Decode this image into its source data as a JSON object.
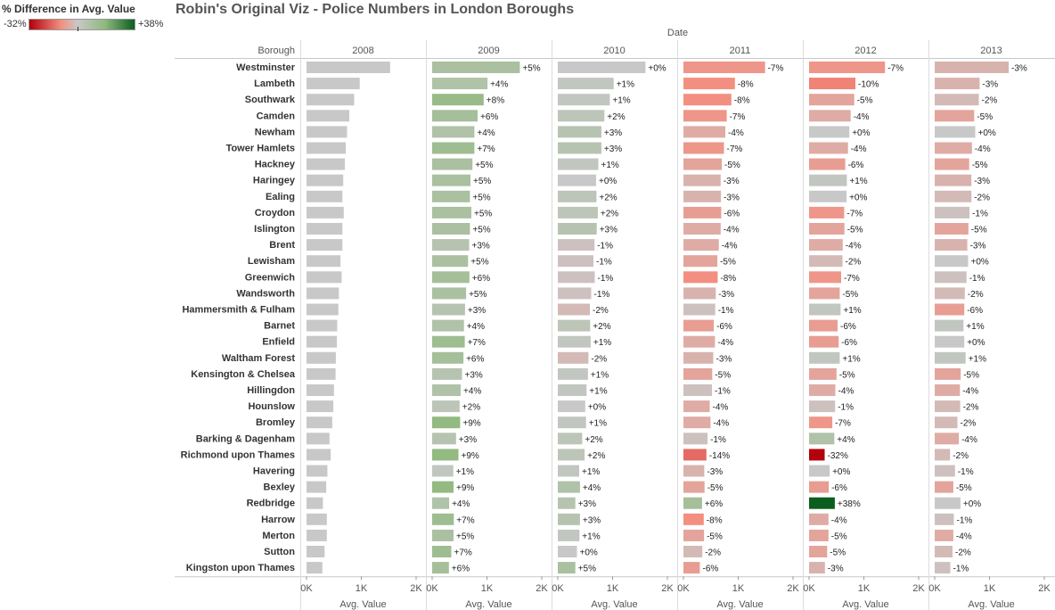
{
  "chart_data": {
    "type": "bar",
    "title": "Robin's Original Viz - Police Numbers in London Boroughs",
    "column_header": "Date",
    "row_header": "Borough",
    "xlabel": "Avg. Value",
    "xlim": [
      0,
      2000
    ],
    "x_ticks": [
      "0K",
      "1K",
      "2K"
    ],
    "legend": {
      "title": "% Difference in Avg. Value",
      "min_label": "-32%",
      "max_label": "+38%",
      "min": -32,
      "max": 38,
      "colors": [
        "#b2000c",
        "#f38f80",
        "#c8c8c8",
        "#8fb97d",
        "#0c5e1e"
      ],
      "placement": "top-left"
    },
    "years": [
      "2008",
      "2009",
      "2010",
      "2011",
      "2012",
      "2013"
    ],
    "boroughs": [
      "Westminster",
      "Lambeth",
      "Southwark",
      "Camden",
      "Newham",
      "Tower Hamlets",
      "Hackney",
      "Haringey",
      "Ealing",
      "Croydon",
      "Islington",
      "Brent",
      "Lewisham",
      "Greenwich",
      "Wandsworth",
      "Hammersmith & Fulham",
      "Barnet",
      "Enfield",
      "Waltham Forest",
      "Kensington & Chelsea",
      "Hillingdon",
      "Hounslow",
      "Bromley",
      "Barking & Dagenham",
      "Richmond upon Thames",
      "Havering",
      "Bexley",
      "Redbridge",
      "Harrow",
      "Merton",
      "Sutton",
      "Kingston upon Thames"
    ],
    "series": [
      {
        "values": [
          1525,
          970,
          870,
          780,
          740,
          715,
          700,
          670,
          655,
          680,
          655,
          655,
          620,
          640,
          590,
          580,
          560,
          555,
          535,
          530,
          500,
          490,
          470,
          420,
          440,
          380,
          360,
          300,
          370,
          370,
          330,
          290
        ],
        "pct": [
          null,
          null,
          null,
          null,
          null,
          null,
          null,
          null,
          null,
          null,
          null,
          null,
          null,
          null,
          null,
          null,
          null,
          null,
          null,
          null,
          null,
          null,
          null,
          null,
          null,
          null,
          null,
          null,
          null,
          null,
          null,
          null
        ]
      },
      {
        "values": [
          1600,
          1010,
          940,
          830,
          770,
          770,
          735,
          700,
          690,
          715,
          690,
          675,
          655,
          680,
          620,
          600,
          580,
          595,
          570,
          545,
          520,
          500,
          510,
          435,
          480,
          385,
          390,
          310,
          395,
          390,
          350,
          305
        ],
        "pct": [
          "+5%",
          "+4%",
          "+8%",
          "+6%",
          "+4%",
          "+7%",
          "+5%",
          "+5%",
          "+5%",
          "+5%",
          "+5%",
          "+3%",
          "+5%",
          "+6%",
          "+5%",
          "+3%",
          "+4%",
          "+7%",
          "+6%",
          "+3%",
          "+4%",
          "+2%",
          "+9%",
          "+3%",
          "+9%",
          "+1%",
          "+9%",
          "+4%",
          "+7%",
          "+5%",
          "+7%",
          "+6%"
        ]
      },
      {
        "values": [
          1600,
          1020,
          950,
          850,
          795,
          795,
          740,
          700,
          705,
          730,
          710,
          670,
          650,
          675,
          610,
          585,
          590,
          600,
          560,
          550,
          525,
          500,
          515,
          445,
          490,
          390,
          405,
          320,
          405,
          395,
          350,
          320
        ],
        "pct": [
          "+0%",
          "+1%",
          "+1%",
          "+2%",
          "+3%",
          "+3%",
          "+1%",
          "+0%",
          "+2%",
          "+2%",
          "+3%",
          "-1%",
          "-1%",
          "-1%",
          "-1%",
          "-2%",
          "+2%",
          "+1%",
          "-2%",
          "+1%",
          "+1%",
          "+0%",
          "+1%",
          "+2%",
          "+2%",
          "+1%",
          "+4%",
          "+3%",
          "+3%",
          "+1%",
          "+0%",
          "+5%"
        ]
      },
      {
        "values": [
          1490,
          940,
          875,
          790,
          765,
          740,
          700,
          680,
          685,
          690,
          680,
          645,
          620,
          625,
          590,
          580,
          555,
          575,
          545,
          525,
          520,
          480,
          495,
          440,
          420,
          380,
          385,
          340,
          370,
          375,
          345,
          300
        ],
        "pct": [
          "-7%",
          "-8%",
          "-8%",
          "-7%",
          "-4%",
          "-7%",
          "-5%",
          "-3%",
          "-3%",
          "-6%",
          "-4%",
          "-4%",
          "-5%",
          "-8%",
          "-3%",
          "-1%",
          "-6%",
          "-4%",
          "-3%",
          "-5%",
          "-1%",
          "-4%",
          "-4%",
          "-1%",
          "-14%",
          "-3%",
          "-5%",
          "+6%",
          "-8%",
          "-5%",
          "-2%",
          "-6%"
        ]
      },
      {
        "values": [
          1385,
          845,
          825,
          760,
          735,
          710,
          660,
          690,
          685,
          640,
          645,
          615,
          610,
          585,
          560,
          575,
          520,
          540,
          560,
          500,
          480,
          475,
          425,
          460,
          285,
          375,
          360,
          470,
          355,
          355,
          330,
          290
        ],
        "pct": [
          "-7%",
          "-10%",
          "-5%",
          "-4%",
          "+0%",
          "-4%",
          "-6%",
          "+1%",
          "+0%",
          "-7%",
          "-5%",
          "-4%",
          "-2%",
          "-7%",
          "-5%",
          "+1%",
          "-6%",
          "-6%",
          "+1%",
          "-5%",
          "-4%",
          "-1%",
          "-7%",
          "+4%",
          "-32%",
          "+0%",
          "-6%",
          "+38%",
          "-4%",
          "-5%",
          "-5%",
          "-3%"
        ]
      },
      {
        "values": [
          1350,
          820,
          805,
          720,
          740,
          680,
          630,
          670,
          670,
          635,
          615,
          595,
          610,
          580,
          550,
          540,
          525,
          540,
          565,
          475,
          460,
          465,
          415,
          440,
          280,
          370,
          340,
          470,
          350,
          340,
          325,
          285
        ],
        "pct": [
          "-3%",
          "-3%",
          "-2%",
          "-5%",
          "+0%",
          "-4%",
          "-5%",
          "-3%",
          "-2%",
          "-1%",
          "-5%",
          "-3%",
          "+0%",
          "-1%",
          "-2%",
          "-6%",
          "+1%",
          "+0%",
          "+1%",
          "-5%",
          "-4%",
          "-2%",
          "-2%",
          "-4%",
          "-2%",
          "-1%",
          "-5%",
          "+0%",
          "-1%",
          "-4%",
          "-2%",
          "-1%"
        ]
      }
    ]
  }
}
